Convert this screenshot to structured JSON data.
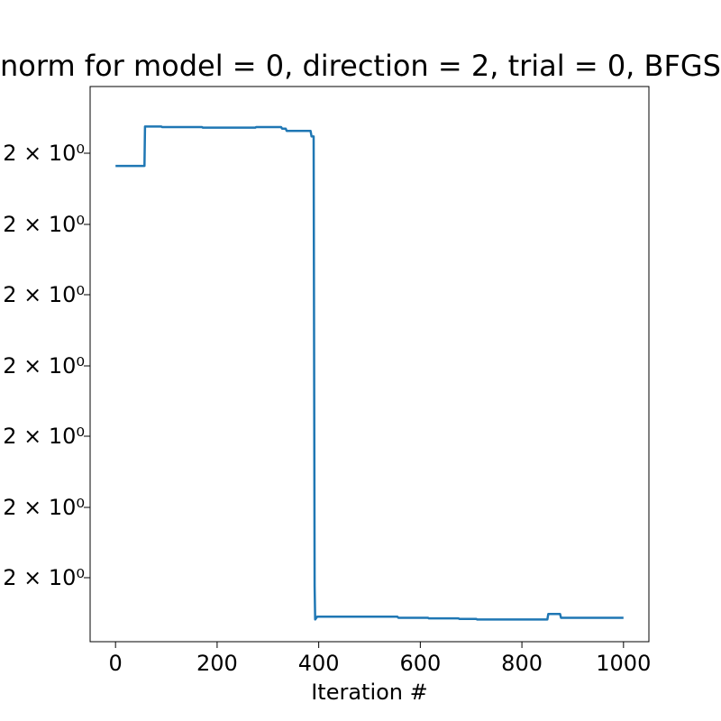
{
  "chart_data": {
    "type": "line",
    "title": "norm for model = 0, direction = 2, trial = 0, BFGS",
    "xlabel": "Iteration #",
    "ylabel": "",
    "xlim": [
      -50,
      1050
    ],
    "ylim": [
      2.0,
      3.0
    ],
    "xticks": [
      0,
      200,
      400,
      600,
      800,
      1000
    ],
    "xtick_labels": [
      "0",
      "200",
      "400",
      "600",
      "800",
      "1000"
    ],
    "ytick_labels": [
      "2 × 10⁰",
      "2 × 10⁰",
      "2 × 10⁰",
      "2 × 10⁰",
      "2 × 10⁰",
      "2 × 10⁰",
      "2 × 10⁰"
    ],
    "grid": false,
    "series": [
      {
        "color": "#1f77b4",
        "x": [
          0,
          57,
          58,
          90,
          92,
          170,
          172,
          275,
          277,
          326,
          328,
          335,
          337,
          384,
          386,
          390,
          392,
          393,
          397,
          555,
          557,
          615,
          617,
          675,
          677,
          710,
          712,
          850,
          852,
          875,
          877,
          1000
        ],
        "y": [
          2.857,
          2.857,
          2.928,
          2.928,
          2.927,
          2.927,
          2.926,
          2.926,
          2.927,
          2.927,
          2.924,
          2.924,
          2.92,
          2.92,
          2.91,
          2.91,
          2.1,
          2.04,
          2.045,
          2.045,
          2.043,
          2.043,
          2.042,
          2.042,
          2.041,
          2.041,
          2.04,
          2.04,
          2.05,
          2.05,
          2.043,
          2.043
        ]
      }
    ]
  }
}
